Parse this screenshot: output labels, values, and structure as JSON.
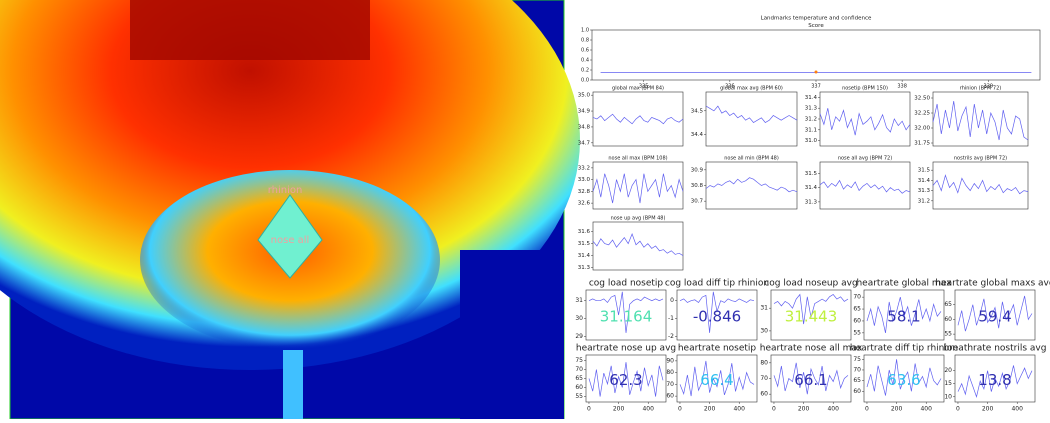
{
  "image": {
    "labels": [
      "rhinion",
      "nose all"
    ]
  },
  "chart_data": [
    {
      "type": "line",
      "suptitle": "Landmarks temperature and confidence",
      "title": "Score",
      "color": "#6060f0",
      "x": [
        334.5,
        335,
        335.5,
        336,
        336.5,
        337,
        337.5,
        338,
        338.5,
        339,
        339.5
      ],
      "values": [
        0.15,
        0.15,
        0.15,
        0.15,
        0.15,
        0.15,
        0.15,
        0.15,
        0.15,
        0.15,
        0.15
      ],
      "xlim": [
        334.4,
        339.6
      ],
      "xticks": [
        335,
        336,
        337,
        338,
        339
      ],
      "ylim": [
        0,
        1
      ],
      "yticks": [
        {
          "value": 0,
          "label": "0.0"
        },
        {
          "value": 0.2,
          "label": "0.2"
        },
        {
          "value": 0.4,
          "label": "0.4"
        },
        {
          "value": 0.6,
          "label": "0.6"
        },
        {
          "value": 0.8,
          "label": "0.8"
        },
        {
          "value": 1,
          "label": "1.0"
        }
      ],
      "highlight": {
        "x": 337,
        "y": 0.16,
        "color": "#ff7f0e"
      }
    },
    {
      "type": "line",
      "title": "global max (BPM 84)",
      "color": "#6060f0",
      "values": [
        34.86,
        34.85,
        34.87,
        34.84,
        34.86,
        34.88,
        34.85,
        34.83,
        34.86,
        34.84,
        34.82,
        34.85,
        34.87,
        34.84,
        34.83,
        34.86,
        34.85,
        34.84,
        34.82,
        34.85,
        34.86,
        34.84,
        34.83,
        34.85
      ],
      "ylim": [
        34.68,
        35.02
      ],
      "yticks": [
        34.7,
        34.8,
        34.9,
        {
          "value": 35,
          "label": "35.0"
        }
      ]
    },
    {
      "type": "line",
      "title": "global max avg (BPM 60)",
      "color": "#6060f0",
      "values": [
        34.52,
        34.51,
        34.5,
        34.52,
        34.49,
        34.5,
        34.48,
        34.49,
        34.47,
        34.48,
        34.46,
        34.47,
        34.45,
        34.46,
        34.47,
        34.45,
        34.46,
        34.48,
        34.47,
        34.46,
        34.47,
        34.48,
        34.47,
        34.46
      ],
      "ylim": [
        34.35,
        34.58
      ],
      "yticks": [
        34.4,
        34.5
      ]
    },
    {
      "type": "line",
      "title": "nosetip  (BPM 150)",
      "color": "#6060f0",
      "values": [
        31.25,
        31.15,
        31.3,
        31.1,
        31.22,
        31.18,
        31.28,
        31.12,
        31.2,
        31.05,
        31.25,
        31.15,
        31.18,
        31.22,
        31.1,
        31.16,
        31.24,
        31.12,
        31.08,
        31.2,
        31.14,
        31.18,
        31.1,
        31.15
      ],
      "ylim": [
        30.95,
        31.45
      ],
      "yticks": [
        {
          "value": 31,
          "label": "31.0"
        },
        31.1,
        31.2,
        31.3,
        31.4
      ]
    },
    {
      "type": "line",
      "title": "rhinion  (BPM 72)",
      "color": "#6060f0",
      "values": [
        32.1,
        32.4,
        31.9,
        32.3,
        32,
        32.45,
        31.95,
        32.2,
        32.35,
        31.85,
        32.4,
        32,
        32.3,
        31.9,
        32.25,
        32.1,
        31.8,
        32.3,
        32,
        31.9,
        32.2,
        32.15,
        31.85,
        31.8
      ],
      "ylim": [
        31.7,
        32.6
      ],
      "yticks": [
        31.75,
        {
          "value": 32,
          "label": "32.00"
        },
        32.25,
        {
          "value": 32.5,
          "label": "32.50"
        }
      ]
    },
    {
      "type": "line",
      "title": "nose all max (BPM 108)",
      "color": "#6060f0",
      "values": [
        32.8,
        33,
        32.7,
        33.1,
        32.9,
        32.6,
        33,
        32.8,
        33.1,
        32.7,
        32.9,
        33,
        32.6,
        33.1,
        32.8,
        32.9,
        33,
        32.7,
        33.1,
        32.8,
        32.9,
        32.7,
        33,
        32.8
      ],
      "ylim": [
        32.5,
        33.3
      ],
      "yticks": [
        32.6,
        32.8,
        {
          "value": 33,
          "label": "33.0"
        },
        33.2
      ]
    },
    {
      "type": "line",
      "title": "nose all min (BPM 48)",
      "color": "#6060f0",
      "values": [
        30.78,
        30.8,
        30.79,
        30.81,
        30.8,
        30.82,
        30.83,
        30.81,
        30.84,
        30.82,
        30.83,
        30.85,
        30.84,
        30.82,
        30.8,
        30.81,
        30.79,
        30.78,
        30.77,
        30.79,
        30.78,
        30.76,
        30.77,
        30.76
      ],
      "ylim": [
        30.65,
        30.95
      ],
      "yticks": [
        30.7,
        30.8,
        30.9
      ]
    },
    {
      "type": "line",
      "title": "nose all avg (BPM 72)",
      "color": "#6060f0",
      "values": [
        31.42,
        31.44,
        31.4,
        31.43,
        31.41,
        31.45,
        31.39,
        31.42,
        31.4,
        31.44,
        31.38,
        31.41,
        31.43,
        31.4,
        31.42,
        31.39,
        31.41,
        31.37,
        31.4,
        31.38,
        31.39,
        31.36,
        31.38,
        31.37
      ],
      "ylim": [
        31.25,
        31.58
      ],
      "yticks": [
        31.3,
        31.4,
        31.5
      ]
    },
    {
      "type": "line",
      "title": "nostrils avg (BPM 72)",
      "color": "#6060f0",
      "values": [
        31.35,
        31.4,
        31.3,
        31.45,
        31.33,
        31.38,
        31.28,
        31.42,
        31.35,
        31.3,
        31.37,
        31.32,
        31.4,
        31.29,
        31.34,
        31.31,
        31.36,
        31.28,
        31.32,
        31.3,
        31.33,
        31.27,
        31.3,
        31.29
      ],
      "ylim": [
        31.12,
        31.58
      ],
      "yticks": [
        31.2,
        31.3,
        31.4,
        31.5
      ]
    },
    {
      "type": "line",
      "title": "nose up avg (BPM 48)",
      "color": "#6060f0",
      "values": [
        31.52,
        31.48,
        31.54,
        31.5,
        31.49,
        31.53,
        31.47,
        31.51,
        31.55,
        31.5,
        31.58,
        31.49,
        31.52,
        31.47,
        31.5,
        31.46,
        31.48,
        31.44,
        31.45,
        31.42,
        31.44,
        31.41,
        31.42,
        31.4
      ],
      "ylim": [
        31.28,
        31.68
      ],
      "yticks": [
        31.3,
        31.4,
        31.5,
        31.6
      ]
    },
    {
      "type": "line",
      "title": "cog load nosetip",
      "color": "#6060f0",
      "annotation": "31.164",
      "annotation_color": "#50e0b0",
      "x": [
        0,
        25,
        50,
        75,
        100,
        125,
        150,
        175,
        200,
        225,
        250,
        275,
        300,
        325,
        350,
        375,
        400,
        425,
        450,
        475,
        500
      ],
      "values": [
        31,
        31.1,
        31,
        31,
        31.1,
        30.9,
        31.2,
        31.3,
        30.2,
        31.5,
        29.2,
        30.8,
        31,
        31.1,
        31,
        31.2,
        31.1,
        31,
        31.1,
        31,
        31.1
      ],
      "xlim": [
        -20,
        520
      ],
      "ylim": [
        28.8,
        31.6
      ],
      "yticks": [
        29,
        30,
        31
      ]
    },
    {
      "type": "line",
      "title": "cog load diff tip rhinion",
      "color": "#6060f0",
      "annotation": "-0.846",
      "annotation_color": "#3030b0",
      "x": [
        0,
        25,
        50,
        75,
        100,
        125,
        150,
        175,
        200,
        225,
        250,
        275,
        300,
        325,
        350,
        375,
        400,
        425,
        450,
        475,
        500
      ],
      "values": [
        0,
        0.1,
        -0.1,
        0,
        0.05,
        -0.1,
        0.2,
        0.3,
        -1.8,
        0.5,
        -0.6,
        0,
        -0.1,
        0.1,
        0,
        -0.05,
        0.1,
        0,
        -0.1,
        0.05,
        0
      ],
      "xlim": [
        -20,
        520
      ],
      "ylim": [
        -2.2,
        0.6
      ],
      "yticks": [
        -2,
        -1,
        0
      ]
    },
    {
      "type": "line",
      "title": "cog load noseup avg",
      "color": "#6060f0",
      "annotation": "31.443",
      "annotation_color": "#c0f040",
      "x": [
        0,
        25,
        50,
        75,
        100,
        125,
        150,
        175,
        200,
        225,
        250,
        275,
        300,
        325,
        350,
        375,
        400,
        425,
        450,
        475,
        500
      ],
      "values": [
        31.2,
        31.3,
        31.1,
        31.3,
        31.2,
        31,
        31.4,
        31.6,
        30.3,
        31.5,
        30.6,
        31.2,
        31.3,
        31.4,
        31.3,
        31.5,
        31.6,
        31.4,
        31.5,
        31.3,
        31.4
      ],
      "xlim": [
        -20,
        520
      ],
      "ylim": [
        29.6,
        31.8
      ],
      "yticks": [
        30,
        31
      ]
    },
    {
      "type": "line",
      "title": "heartrate global max",
      "color": "#6060f0",
      "annotation": "58.1",
      "annotation_color": "#3030b0",
      "x": [
        0,
        25,
        50,
        75,
        100,
        125,
        150,
        175,
        200,
        225,
        250,
        275,
        300,
        325,
        350,
        375,
        400,
        425,
        450,
        475,
        500
      ],
      "values": [
        60,
        65,
        58,
        66,
        62,
        55,
        68,
        60,
        64,
        70,
        62,
        66,
        58,
        63,
        69,
        61,
        65,
        60,
        67,
        62,
        64
      ],
      "xlim": [
        -20,
        520
      ],
      "ylim": [
        52,
        73
      ],
      "yticks": [
        55,
        60,
        65,
        70
      ]
    },
    {
      "type": "line",
      "title": "heartrate global maxs avg",
      "color": "#6060f0",
      "annotation": "59.4",
      "annotation_color": "#3030b0",
      "x": [
        0,
        25,
        50,
        75,
        100,
        125,
        150,
        175,
        200,
        225,
        250,
        275,
        300,
        325,
        350,
        375,
        400,
        425,
        450,
        475,
        500
      ],
      "values": [
        58,
        63,
        56,
        60,
        65,
        58,
        62,
        67,
        59,
        61,
        64,
        57,
        66,
        60,
        62,
        65,
        58,
        63,
        68,
        60,
        62
      ],
      "xlim": [
        -20,
        520
      ],
      "ylim": [
        53,
        70
      ],
      "yticks": [
        55,
        60,
        65
      ]
    },
    {
      "type": "line",
      "title": "heartrate nose up avg",
      "color": "#6060f0",
      "annotation": "62.3",
      "annotation_color": "#3030b0",
      "x": [
        0,
        25,
        50,
        75,
        100,
        125,
        150,
        175,
        200,
        225,
        250,
        275,
        300,
        325,
        350,
        375,
        400,
        425,
        450,
        475,
        500
      ],
      "values": [
        65,
        58,
        70,
        55,
        68,
        62,
        72,
        57,
        66,
        60,
        74,
        56,
        63,
        69,
        58,
        71,
        61,
        67,
        55,
        72,
        64
      ],
      "xlim": [
        -20,
        520
      ],
      "xticks": [
        0,
        200,
        400
      ],
      "ylim": [
        52,
        78
      ],
      "yticks": [
        55,
        60,
        65,
        70,
        75
      ]
    },
    {
      "type": "line",
      "title": "heartrate nosetip",
      "color": "#6060f0",
      "annotation": "66.4",
      "annotation_color": "#30c0f0",
      "x": [
        0,
        25,
        50,
        75,
        100,
        125,
        150,
        175,
        200,
        225,
        250,
        275,
        300,
        325,
        350,
        375,
        400,
        425,
        450,
        475,
        500
      ],
      "values": [
        70,
        62,
        78,
        60,
        85,
        65,
        72,
        90,
        63,
        75,
        68,
        82,
        61,
        70,
        88,
        64,
        76,
        66,
        80,
        72,
        70
      ],
      "xlim": [
        -20,
        520
      ],
      "xticks": [
        0,
        200,
        400
      ],
      "ylim": [
        55,
        95
      ],
      "yticks": [
        60,
        70,
        80,
        90
      ]
    },
    {
      "type": "line",
      "title": "heartrate nose all max",
      "color": "#6060f0",
      "annotation": "66.1",
      "annotation_color": "#3030b0",
      "x": [
        0,
        25,
        50,
        75,
        100,
        125,
        150,
        175,
        200,
        225,
        250,
        275,
        300,
        325,
        350,
        375,
        400,
        425,
        450,
        475,
        500
      ],
      "values": [
        72,
        65,
        78,
        62,
        70,
        68,
        80,
        64,
        74,
        60,
        76,
        70,
        66,
        78,
        62,
        72,
        68,
        75,
        64,
        70,
        72
      ],
      "xlim": [
        -20,
        520
      ],
      "xticks": [
        0,
        200,
        400
      ],
      "ylim": [
        55,
        85
      ],
      "yticks": [
        60,
        70,
        80
      ]
    },
    {
      "type": "line",
      "title": "heartrate diff tip rhinion",
      "color": "#6060f0",
      "annotation": "63.6",
      "annotation_color": "#30c0f0",
      "x": [
        0,
        25,
        50,
        75,
        100,
        125,
        150,
        175,
        200,
        225,
        250,
        275,
        300,
        325,
        350,
        375,
        400,
        425,
        450,
        475,
        500
      ],
      "values": [
        62,
        68,
        60,
        72,
        65,
        58,
        70,
        63,
        75,
        61,
        66,
        69,
        60,
        73,
        64,
        67,
        62,
        71,
        65,
        63,
        66
      ],
      "xlim": [
        -20,
        520
      ],
      "xticks": [
        0,
        200,
        400
      ],
      "ylim": [
        55,
        77
      ],
      "yticks": [
        60,
        65,
        70,
        75
      ]
    },
    {
      "type": "line",
      "title": "breathrate nostrils avg",
      "color": "#6060f0",
      "annotation": "13.8",
      "annotation_color": "#3030b0",
      "x": [
        0,
        25,
        50,
        75,
        100,
        125,
        150,
        175,
        200,
        225,
        250,
        275,
        300,
        325,
        350,
        375,
        400,
        425,
        450,
        475,
        500
      ],
      "values": [
        12,
        15,
        11,
        18,
        14,
        10,
        16,
        13,
        20,
        12,
        17,
        14,
        19,
        13,
        16,
        22,
        15,
        18,
        21,
        17,
        20
      ],
      "xlim": [
        -20,
        520
      ],
      "xticks": [
        0,
        200,
        400
      ],
      "ylim": [
        8,
        26
      ],
      "yticks": [
        10,
        15,
        20
      ]
    }
  ]
}
